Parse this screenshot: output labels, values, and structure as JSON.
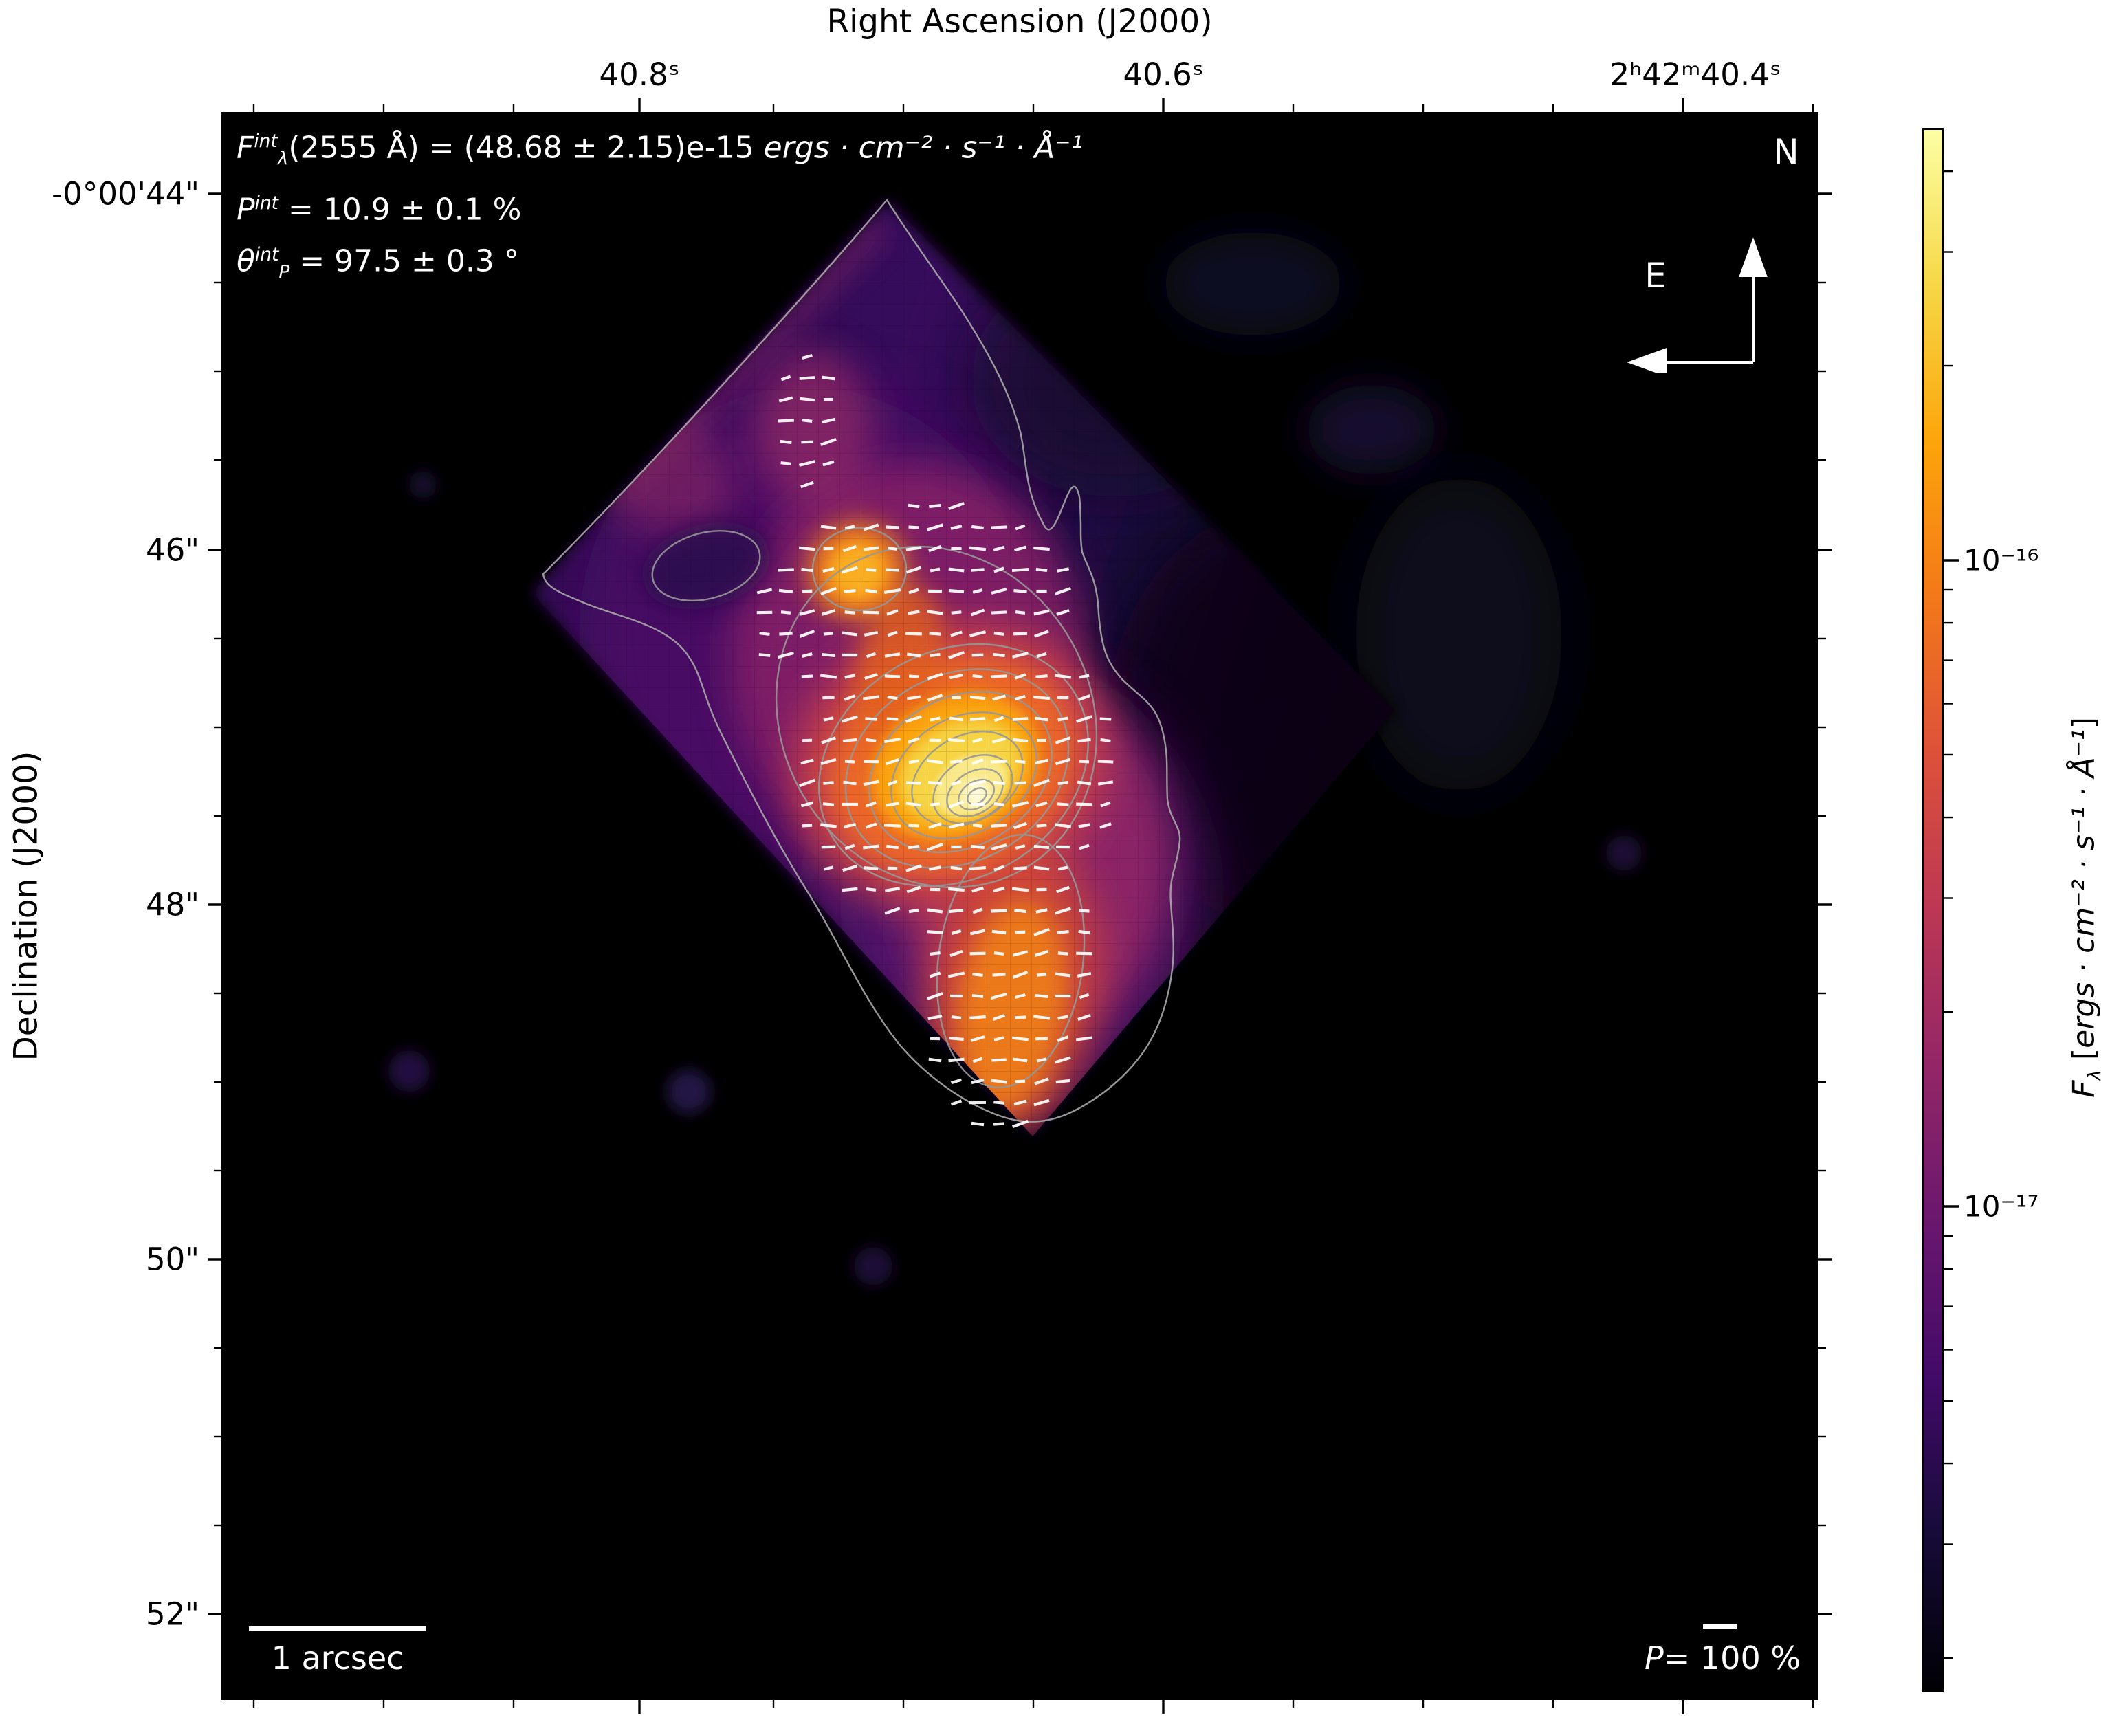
{
  "figure": {
    "background": "#ffffff",
    "plot_background": "#000000"
  },
  "axes": {
    "ra": {
      "title": "Right Ascension (J2000)",
      "tick_labels": [
        "40.8ˢ",
        "40.6ˢ",
        "2ʰ42ᵐ40.4ˢ"
      ]
    },
    "dec": {
      "title": "Declination (J2000)",
      "tick_labels": [
        "-0°00'44\"",
        "46\"",
        "48\"",
        "50\"",
        "52\""
      ]
    }
  },
  "annotation": {
    "line1": [
      {
        "v": "F",
        "i": true
      },
      {
        "v": "int",
        "sup": true,
        "i": true
      },
      {
        "v": "λ",
        "sub": true,
        "i": true
      },
      {
        "v": "(2555 Å) = (48.68 ± 2.15)e-15 "
      },
      {
        "v": "ergs · cm⁻² · s⁻¹ · Å⁻¹",
        "i": true
      }
    ],
    "line2": [
      {
        "v": "P",
        "i": true
      },
      {
        "v": "int",
        "sup": true,
        "i": true
      },
      {
        "v": " = 10.9 ± 0.1 %"
      }
    ],
    "line3": [
      {
        "v": "θ",
        "i": true
      },
      {
        "v": "int",
        "sup": true,
        "i": true
      },
      {
        "v": "P",
        "sub": true,
        "i": true
      },
      {
        "v": " = 97.5 ± 0.3 °"
      }
    ]
  },
  "compass": {
    "north_label": "N",
    "east_label": "E"
  },
  "scalebar": {
    "label": "1 arcsec"
  },
  "pol_legend": [
    {
      "v": "P",
      "i": true
    },
    {
      "v": "= 100 %"
    }
  ],
  "colorbar": {
    "tick_labels": [
      "10⁻¹⁶",
      "10⁻¹⁷"
    ],
    "label_segments": [
      {
        "v": "F",
        "i": true
      },
      {
        "v": "λ",
        "sub": true,
        "i": true
      },
      {
        "v": " ["
      },
      {
        "v": "ergs · cm⁻² · s⁻¹ · Å⁻¹",
        "i": true
      },
      {
        "v": "]"
      }
    ],
    "gradient": [
      "#fcffa4",
      "#f6d746",
      "#fca50a",
      "#f37819",
      "#dd513a",
      "#bc3754",
      "#932667",
      "#6a176e",
      "#420a68",
      "#160b39",
      "#000004"
    ]
  },
  "chart_data": {
    "type": "heatmap",
    "title": "",
    "quantity": "F_λ [ergs · cm⁻² · s⁻¹ · Å⁻¹]",
    "colormap": "inferno",
    "color_scale": "log",
    "colorbar_tick_values": [
      "1e-16",
      "1e-17"
    ],
    "flux_range_approx": [
      "2e-18",
      "5e-16"
    ],
    "x_axis": {
      "label": "Right Ascension (J2000)",
      "tick_values_s": [
        40.8,
        40.6,
        40.4
      ],
      "tick_labels": [
        "40.8ˢ",
        "40.6ˢ",
        "2ʰ42ᵐ40.4ˢ"
      ],
      "note": "RA decreases toward the right"
    },
    "y_axis": {
      "label": "Declination (J2000)",
      "tick_labels": [
        "-0°00'44\"",
        "46\"",
        "48\"",
        "50\"",
        "52\""
      ]
    },
    "integrated_flux": {
      "wavelength_A": 2555,
      "value_e15": 48.68,
      "error_e15": 2.15,
      "units": "ergs · cm⁻² · s⁻¹ · Å⁻¹"
    },
    "integrated_polarization_percent": {
      "value": 10.9,
      "error": 0.1
    },
    "polarization_angle_deg": {
      "value": 97.5,
      "error": 0.3
    },
    "scalebar_arcsec": 1,
    "vector_legend_percent": 100,
    "bright_features": [
      {
        "name": "main peak",
        "ra_s_approx": 40.67,
        "dec_approx": "-0°00'47.3\""
      },
      {
        "name": "secondary knot",
        "ra_s_approx": 40.72,
        "dec_approx": "-0°00'46.2\""
      },
      {
        "name": "southern filament",
        "ra_s_approx": 40.66,
        "dec_approx": "-0°00'48.5\""
      }
    ],
    "overlays": {
      "contours": "≈10 nested logarithmic flux contour levels (grey)",
      "polarization_vectors": "grid of short white ticks, nearly horizontal orientation (θ≈97.5°)",
      "aperture": "rotated rectangular IFU footprint (~45°) over black sky"
    }
  }
}
